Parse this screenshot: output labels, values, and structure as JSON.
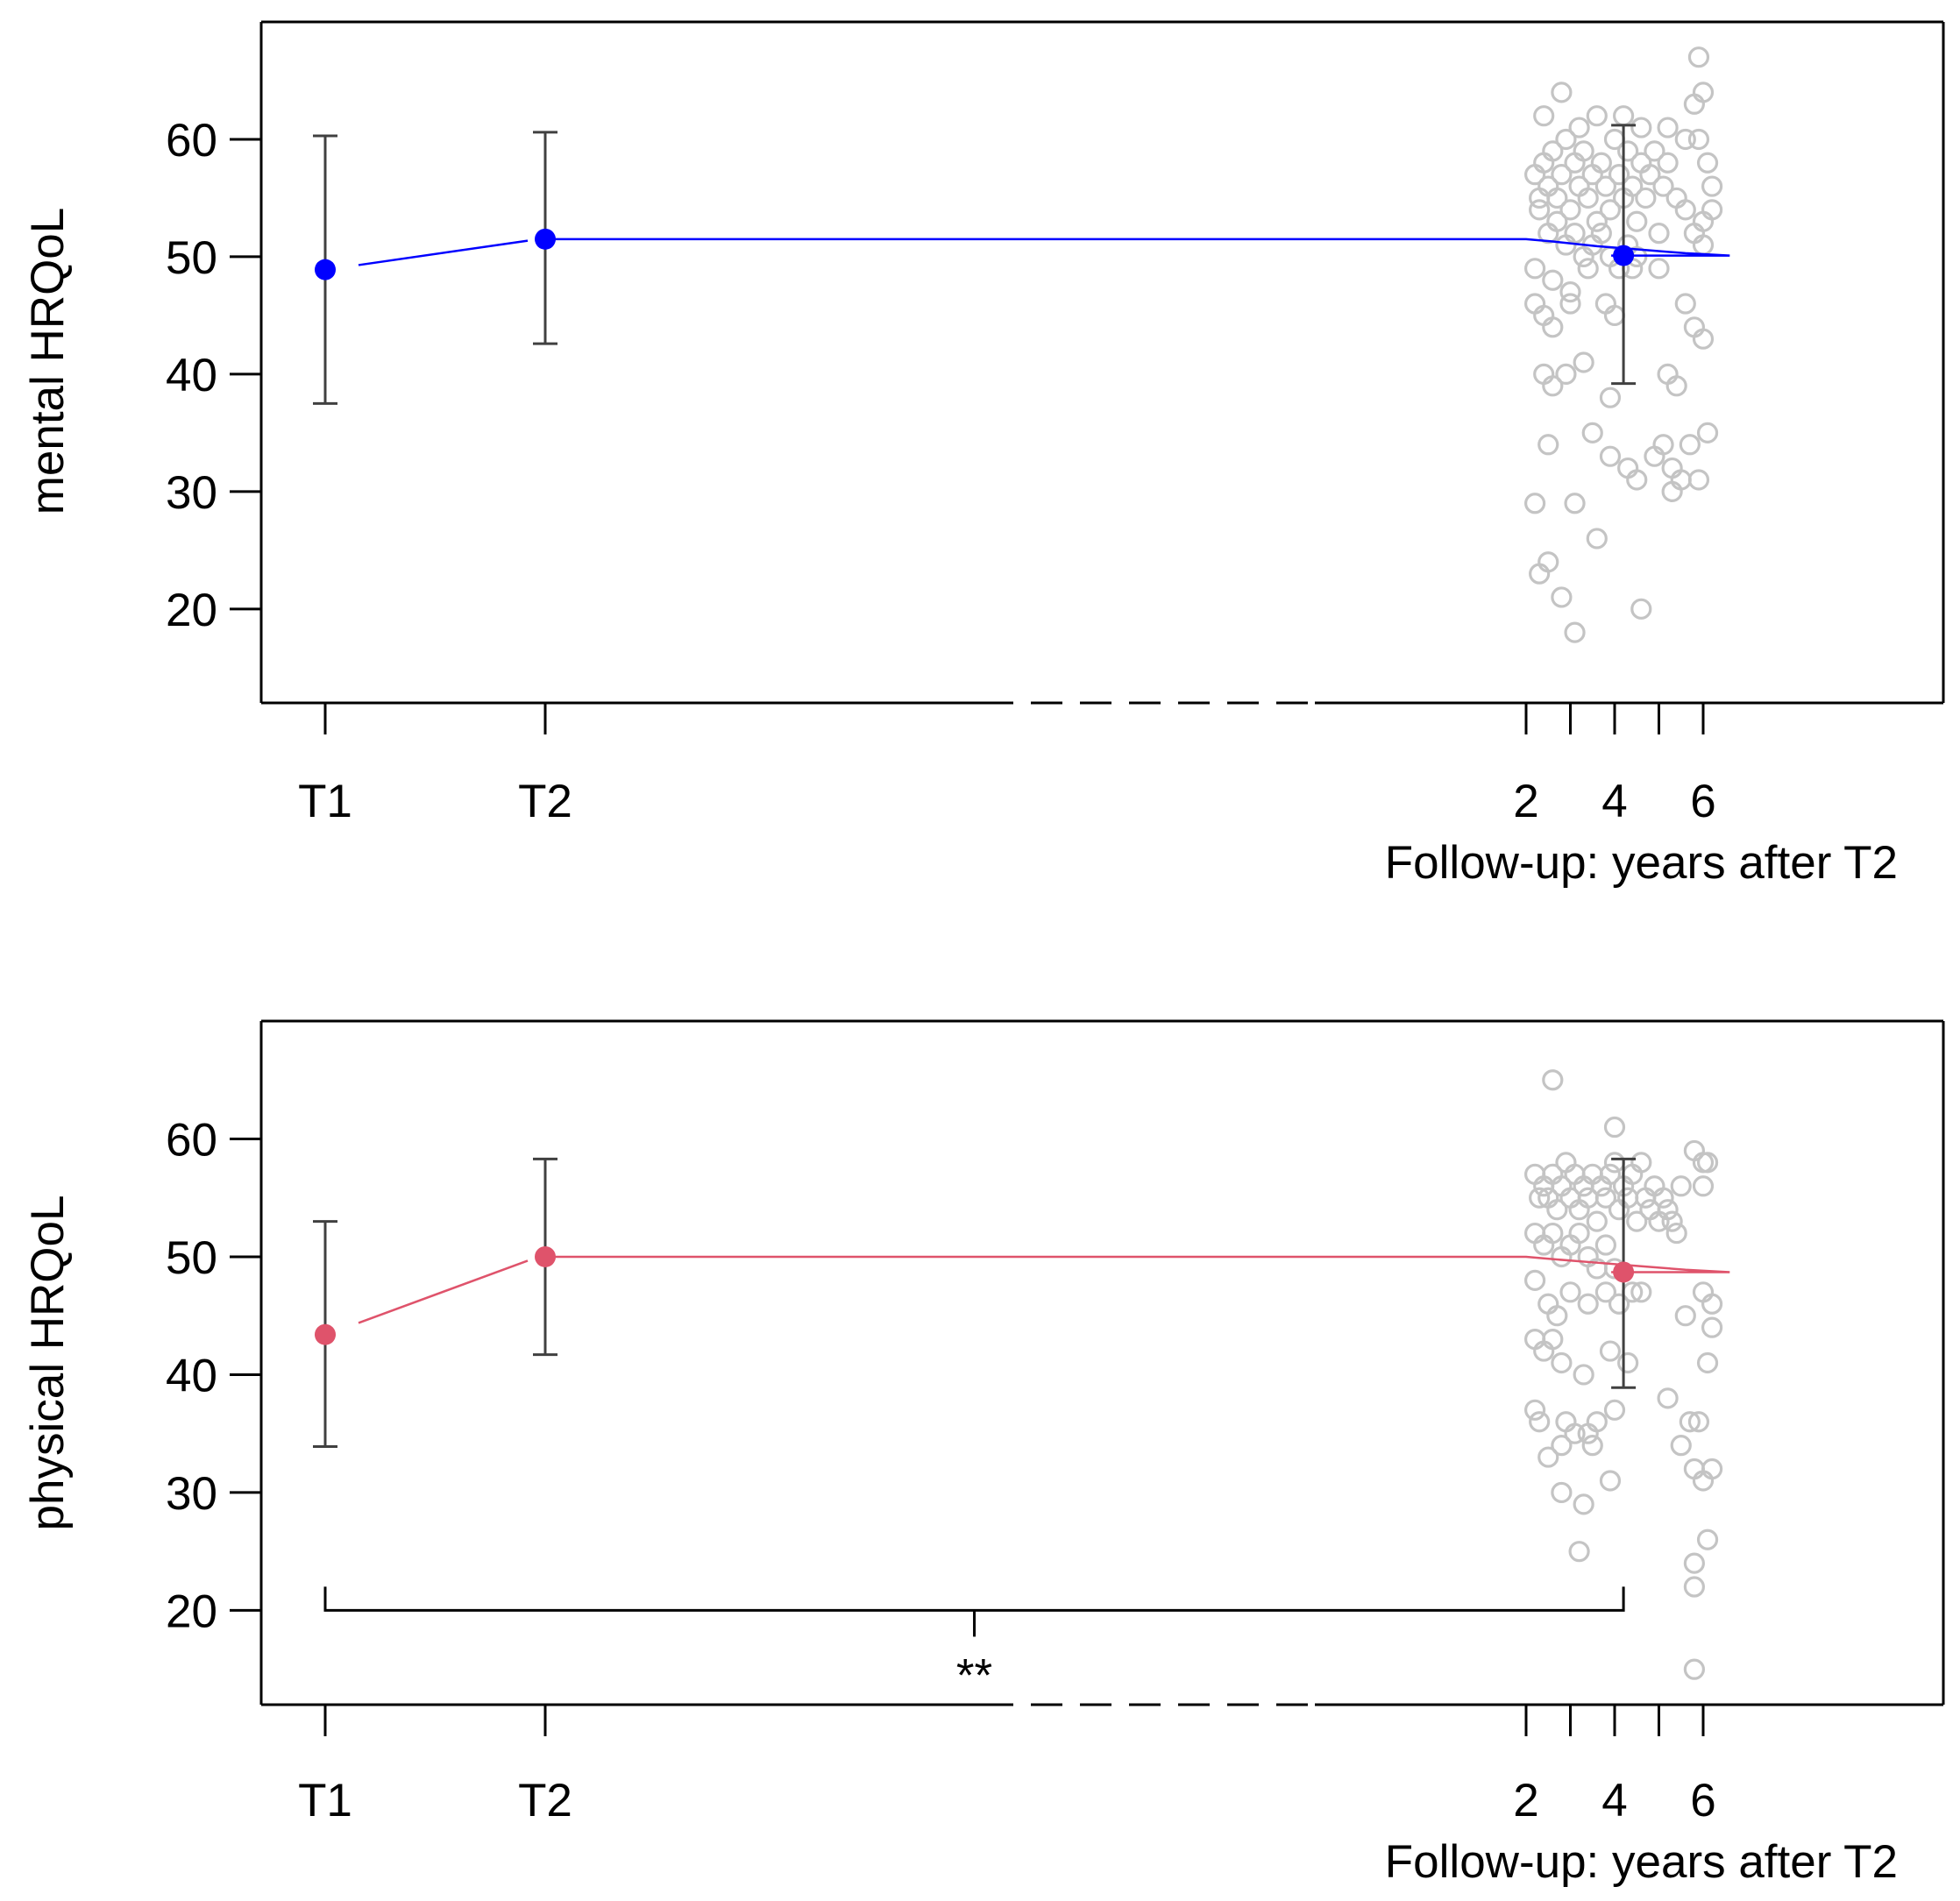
{
  "colors": {
    "mental": "#0000ff",
    "physical": "#df536b",
    "raw": "#c4c4c4",
    "error": "#404040"
  },
  "chart_data": [
    {
      "type": "line",
      "name": "mental",
      "ylabel": "mental HRQoL",
      "xlabel": "Follow-up: years after T2",
      "ylim": [
        12,
        70
      ],
      "yticks": [
        20,
        30,
        40,
        50,
        60
      ],
      "xticks_categorical": [
        "T1",
        "T2"
      ],
      "xticks_followup": [
        2,
        3,
        4,
        5,
        6
      ],
      "xtick_labels_followup": [
        "2",
        "4",
        "6"
      ],
      "means": [
        {
          "time": "T1",
          "mean": 48.9,
          "lower": 37.5,
          "upper": 60.3
        },
        {
          "time": "T2",
          "mean": 51.5,
          "lower": 42.6,
          "upper": 60.6
        },
        {
          "time": 4.2,
          "mean": 50.1,
          "lower": 39.2,
          "upper": 61.2
        }
      ],
      "trend": [
        [
          2.0,
          51.5
        ],
        [
          2.6,
          51.3
        ],
        [
          3.6,
          50.9
        ],
        [
          4.6,
          50.6
        ],
        [
          5.6,
          50.3
        ],
        [
          6.6,
          50.1
        ]
      ],
      "raw_points": [
        [
          2.2,
          57
        ],
        [
          2.3,
          55
        ],
        [
          2.4,
          58
        ],
        [
          2.5,
          56
        ],
        [
          2.6,
          59
        ],
        [
          2.7,
          55
        ],
        [
          2.8,
          57
        ],
        [
          2.9,
          60
        ],
        [
          3.0,
          54
        ],
        [
          3.1,
          58
        ],
        [
          3.2,
          56
        ],
        [
          3.3,
          59
        ],
        [
          3.4,
          55
        ],
        [
          3.5,
          57
        ],
        [
          3.6,
          53
        ],
        [
          3.7,
          58
        ],
        [
          3.8,
          56
        ],
        [
          3.9,
          54
        ],
        [
          4.0,
          60
        ],
        [
          4.1,
          57
        ],
        [
          4.2,
          55
        ],
        [
          4.3,
          59
        ],
        [
          4.4,
          56
        ],
        [
          4.5,
          53
        ],
        [
          4.6,
          58
        ],
        [
          4.7,
          55
        ],
        [
          4.8,
          57
        ],
        [
          4.9,
          59
        ],
        [
          5.0,
          52
        ],
        [
          5.1,
          56
        ],
        [
          5.2,
          58
        ],
        [
          2.3,
          54
        ],
        [
          2.5,
          52
        ],
        [
          2.7,
          53
        ],
        [
          2.9,
          51
        ],
        [
          3.1,
          52
        ],
        [
          3.3,
          50
        ],
        [
          3.5,
          51
        ],
        [
          3.7,
          52
        ],
        [
          3.9,
          50
        ],
        [
          4.1,
          49
        ],
        [
          4.3,
          51
        ],
        [
          4.5,
          50
        ],
        [
          2.4,
          62
        ],
        [
          2.8,
          64
        ],
        [
          3.2,
          61
        ],
        [
          3.6,
          62
        ],
        [
          4.2,
          62
        ],
        [
          4.6,
          61
        ],
        [
          5.2,
          61
        ],
        [
          5.6,
          60
        ],
        [
          5.8,
          63
        ],
        [
          6.0,
          64
        ],
        [
          5.9,
          67
        ],
        [
          2.2,
          49
        ],
        [
          2.6,
          48
        ],
        [
          3.0,
          47
        ],
        [
          3.4,
          49
        ],
        [
          3.8,
          46
        ],
        [
          4.0,
          45
        ],
        [
          4.4,
          49
        ],
        [
          5.0,
          49
        ],
        [
          2.2,
          46
        ],
        [
          2.4,
          45
        ],
        [
          2.6,
          44
        ],
        [
          3.0,
          46
        ],
        [
          5.6,
          46
        ],
        [
          5.8,
          44
        ],
        [
          6.0,
          43
        ],
        [
          5.4,
          55
        ],
        [
          5.6,
          54
        ],
        [
          5.8,
          52
        ],
        [
          6.0,
          53
        ],
        [
          6.2,
          56
        ],
        [
          6.1,
          58
        ],
        [
          5.9,
          60
        ],
        [
          6.2,
          54
        ],
        [
          6.0,
          51
        ],
        [
          2.4,
          40
        ],
        [
          2.6,
          39
        ],
        [
          2.9,
          40
        ],
        [
          3.3,
          41
        ],
        [
          3.9,
          38
        ],
        [
          5.2,
          40
        ],
        [
          5.4,
          39
        ],
        [
          2.5,
          34
        ],
        [
          3.5,
          35
        ],
        [
          3.9,
          33
        ],
        [
          4.3,
          32
        ],
        [
          4.5,
          31
        ],
        [
          4.9,
          33
        ],
        [
          5.1,
          34
        ],
        [
          5.3,
          32
        ],
        [
          5.5,
          31
        ],
        [
          5.7,
          34
        ],
        [
          5.9,
          31
        ],
        [
          6.1,
          35
        ],
        [
          5.3,
          30
        ],
        [
          2.2,
          29
        ],
        [
          3.1,
          29
        ],
        [
          3.6,
          26
        ],
        [
          2.5,
          24
        ],
        [
          2.3,
          23
        ],
        [
          2.8,
          21
        ],
        [
          4.6,
          20
        ],
        [
          3.1,
          18
        ]
      ]
    },
    {
      "type": "line",
      "name": "physical",
      "ylabel": "physical HRQoL",
      "xlabel": "Follow-up: years after T2",
      "ylim": [
        12,
        70
      ],
      "yticks": [
        20,
        30,
        40,
        50,
        60
      ],
      "xticks_categorical": [
        "T1",
        "T2"
      ],
      "xticks_followup": [
        2,
        3,
        4,
        5,
        6
      ],
      "xtick_labels_followup": [
        "2",
        "4",
        "6"
      ],
      "means": [
        {
          "time": "T1",
          "mean": 43.4,
          "lower": 33.9,
          "upper": 53.0
        },
        {
          "time": "T2",
          "mean": 50.0,
          "lower": 41.7,
          "upper": 58.3
        },
        {
          "time": 4.2,
          "mean": 48.7,
          "lower": 38.9,
          "upper": 58.3
        }
      ],
      "trend": [
        [
          2.0,
          50.0
        ],
        [
          2.6,
          49.8
        ],
        [
          3.6,
          49.5
        ],
        [
          4.6,
          49.2
        ],
        [
          5.6,
          48.9
        ],
        [
          6.6,
          48.7
        ]
      ],
      "raw_points": [
        [
          2.2,
          57
        ],
        [
          2.3,
          55
        ],
        [
          2.4,
          56
        ],
        [
          2.5,
          55
        ],
        [
          2.6,
          57
        ],
        [
          2.7,
          54
        ],
        [
          2.8,
          56
        ],
        [
          2.9,
          58
        ],
        [
          3.0,
          55
        ],
        [
          3.1,
          57
        ],
        [
          3.2,
          54
        ],
        [
          3.3,
          56
        ],
        [
          3.4,
          55
        ],
        [
          3.5,
          57
        ],
        [
          3.6,
          53
        ],
        [
          3.7,
          56
        ],
        [
          3.8,
          55
        ],
        [
          3.9,
          57
        ],
        [
          4.0,
          58
        ],
        [
          4.1,
          54
        ],
        [
          4.2,
          56
        ],
        [
          4.3,
          55
        ],
        [
          4.4,
          57
        ],
        [
          4.5,
          53
        ],
        [
          4.6,
          58
        ],
        [
          4.7,
          55
        ],
        [
          4.8,
          54
        ],
        [
          4.9,
          56
        ],
        [
          5.0,
          53
        ],
        [
          5.1,
          55
        ],
        [
          5.2,
          54
        ],
        [
          5.3,
          53
        ],
        [
          5.4,
          52
        ],
        [
          5.5,
          56
        ],
        [
          2.2,
          52
        ],
        [
          2.4,
          51
        ],
        [
          2.6,
          52
        ],
        [
          2.8,
          50
        ],
        [
          3.0,
          51
        ],
        [
          3.2,
          52
        ],
        [
          3.4,
          50
        ],
        [
          3.6,
          49
        ],
        [
          3.8,
          51
        ],
        [
          4.0,
          49
        ],
        [
          4.4,
          47
        ],
        [
          4.6,
          47
        ],
        [
          2.6,
          65
        ],
        [
          4.0,
          61
        ],
        [
          5.8,
          59
        ],
        [
          6.0,
          58
        ],
        [
          6.0,
          56
        ],
        [
          6.1,
          58
        ],
        [
          2.2,
          48
        ],
        [
          2.5,
          46
        ],
        [
          2.7,
          45
        ],
        [
          3.0,
          47
        ],
        [
          3.4,
          46
        ],
        [
          3.8,
          47
        ],
        [
          4.1,
          46
        ],
        [
          2.2,
          43
        ],
        [
          2.4,
          42
        ],
        [
          2.6,
          43
        ],
        [
          2.8,
          41
        ],
        [
          3.3,
          40
        ],
        [
          3.9,
          42
        ],
        [
          4.3,
          41
        ],
        [
          5.6,
          45
        ],
        [
          6.0,
          47
        ],
        [
          6.2,
          46
        ],
        [
          6.2,
          44
        ],
        [
          6.1,
          41
        ],
        [
          2.2,
          37
        ],
        [
          2.3,
          36
        ],
        [
          2.9,
          36
        ],
        [
          3.4,
          35
        ],
        [
          3.6,
          36
        ],
        [
          4.0,
          37
        ],
        [
          5.2,
          38
        ],
        [
          5.7,
          36
        ],
        [
          5.9,
          36
        ],
        [
          2.5,
          33
        ],
        [
          2.8,
          34
        ],
        [
          3.1,
          35
        ],
        [
          3.5,
          34
        ],
        [
          5.5,
          34
        ],
        [
          2.8,
          30
        ],
        [
          3.3,
          29
        ],
        [
          3.9,
          31
        ],
        [
          5.8,
          32
        ],
        [
          6.0,
          31
        ],
        [
          6.2,
          32
        ],
        [
          3.2,
          25
        ],
        [
          5.8,
          24
        ],
        [
          6.1,
          26
        ],
        [
          5.8,
          22
        ],
        [
          5.8,
          15
        ]
      ],
      "significance": {
        "from": "T1",
        "to": 4.2,
        "y": 20,
        "label": "**"
      }
    }
  ]
}
